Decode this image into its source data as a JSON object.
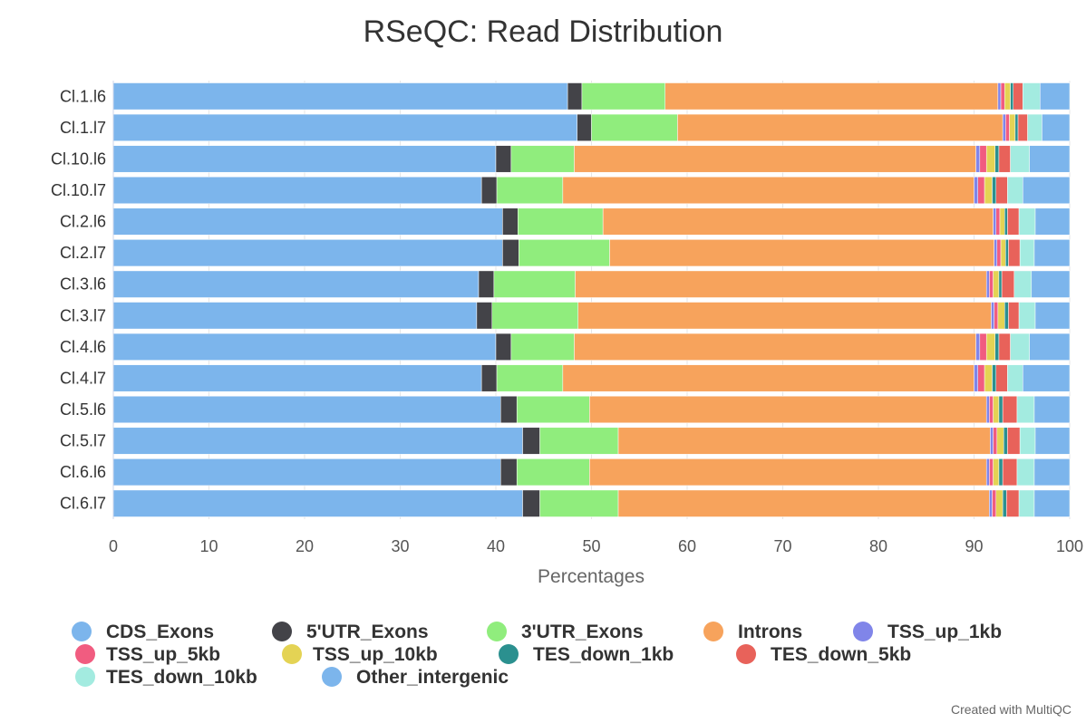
{
  "chart_data": {
    "type": "bar",
    "orientation": "horizontal",
    "stacked": true,
    "title": "RSeQC: Read Distribution",
    "xlabel": "Percentages",
    "xlim": [
      0,
      100
    ],
    "xticks": [
      "0",
      "10",
      "20",
      "30",
      "40",
      "50",
      "60",
      "70",
      "80",
      "90",
      "100"
    ],
    "grid": true,
    "legend_position": "bottom",
    "credit": "Created with MultiQC",
    "categories": [
      "Cl.1.l6",
      "Cl.1.l7",
      "Cl.10.l6",
      "Cl.10.l7",
      "Cl.2.l6",
      "Cl.2.l7",
      "Cl.3.l6",
      "Cl.3.l7",
      "Cl.4.l6",
      "Cl.4.l7",
      "Cl.5.l6",
      "Cl.5.l7",
      "Cl.6.l6",
      "Cl.6.l7"
    ],
    "series": [
      {
        "name": "CDS_Exons",
        "color": "#7cb5ec",
        "values": [
          47.5,
          48.5,
          40.0,
          38.5,
          40.7,
          40.7,
          38.2,
          38.0,
          40.0,
          38.5,
          40.5,
          42.8,
          40.5,
          42.8
        ]
      },
      {
        "name": "5'UTR_Exons",
        "color": "#434348",
        "values": [
          1.5,
          1.5,
          1.6,
          1.6,
          1.6,
          1.7,
          1.6,
          1.6,
          1.6,
          1.6,
          1.7,
          1.8,
          1.7,
          1.8
        ]
      },
      {
        "name": "3'UTR_Exons",
        "color": "#90ed7d",
        "values": [
          8.7,
          9.0,
          6.6,
          6.9,
          8.9,
          9.5,
          8.5,
          9.0,
          6.6,
          6.9,
          7.6,
          8.2,
          7.6,
          8.2
        ]
      },
      {
        "name": "Introns",
        "color": "#f7a35c",
        "values": [
          34.8,
          34.0,
          42.0,
          43.0,
          40.8,
          40.2,
          43.0,
          43.2,
          42.0,
          43.0,
          41.5,
          38.9,
          41.5,
          38.8
        ]
      },
      {
        "name": "TSS_up_1kb",
        "color": "#8085e9",
        "values": [
          0.3,
          0.3,
          0.4,
          0.4,
          0.3,
          0.3,
          0.3,
          0.3,
          0.4,
          0.4,
          0.3,
          0.3,
          0.3,
          0.3
        ]
      },
      {
        "name": "TSS_up_5kb",
        "color": "#f15c80",
        "values": [
          0.4,
          0.4,
          0.7,
          0.7,
          0.4,
          0.4,
          0.4,
          0.4,
          0.7,
          0.7,
          0.4,
          0.4,
          0.4,
          0.4
        ]
      },
      {
        "name": "TSS_up_10kb",
        "color": "#e4d354",
        "values": [
          0.6,
          0.6,
          0.9,
          0.8,
          0.5,
          0.5,
          0.6,
          0.7,
          0.9,
          0.8,
          0.6,
          0.7,
          0.6,
          0.7
        ]
      },
      {
        "name": "TES_down_1kb",
        "color": "#2b908f",
        "values": [
          0.3,
          0.3,
          0.4,
          0.4,
          0.3,
          0.3,
          0.3,
          0.4,
          0.4,
          0.4,
          0.4,
          0.4,
          0.4,
          0.4
        ]
      },
      {
        "name": "TES_down_5kb",
        "color": "#e8625a",
        "values": [
          1.0,
          1.0,
          1.2,
          1.2,
          1.2,
          1.2,
          1.3,
          1.1,
          1.2,
          1.2,
          1.5,
          1.3,
          1.5,
          1.3
        ]
      },
      {
        "name": "TES_down_10kb",
        "color": "#a3ebe0",
        "values": [
          1.8,
          1.5,
          2.0,
          1.6,
          1.7,
          1.5,
          1.8,
          1.7,
          2.0,
          1.6,
          1.8,
          1.6,
          1.8,
          1.6
        ]
      },
      {
        "name": "Other_intergenic",
        "color": "#7cb5ec",
        "values": [
          3.1,
          2.9,
          4.2,
          4.9,
          3.6,
          3.7,
          4.0,
          3.6,
          4.2,
          4.9,
          3.7,
          3.6,
          3.7,
          3.7
        ]
      }
    ]
  }
}
